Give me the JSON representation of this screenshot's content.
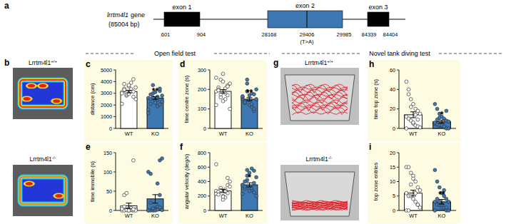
{
  "figure": {
    "panel_labels": [
      "a",
      "b",
      "g"
    ],
    "sections": [
      "Open field test",
      "Novel tank diving test"
    ],
    "gene": {
      "name": "lrrtm4l1",
      "suffix": "gene",
      "length_label": "(85004 bp)",
      "exons": [
        {
          "label": "exon 1",
          "start": 601,
          "end": 904,
          "color": "#000000"
        },
        {
          "label": "exon 2",
          "start": 28168,
          "end": 29985,
          "color": "#3e78b2"
        },
        {
          "label": "exon 3",
          "start": 84339,
          "end": 84404,
          "color": "#000000"
        }
      ],
      "mutation": {
        "position": 29406,
        "label": "(T>A)"
      }
    },
    "genotypes": [
      {
        "base": "Lrrtm4l1",
        "genotype": "+/+"
      },
      {
        "base": "Lrrtm4l1",
        "genotype": "-/-"
      }
    ]
  },
  "chart_data": [
    {
      "type": "bar",
      "panel": "c",
      "y_label": "distance (cm)",
      "categories": [
        "WT",
        "KO"
      ],
      "values": [
        3150,
        2600
      ],
      "errors": [
        110,
        120
      ],
      "colors": [
        "#ffffff",
        "#3e78b2"
      ],
      "points": [
        [
          3100,
          3400,
          2800,
          3600,
          3900,
          4200,
          2500,
          3000,
          3300,
          2900,
          3700,
          3200,
          2700,
          3500,
          2100,
          3800,
          3050,
          2950,
          3350,
          3150
        ],
        [
          2600,
          2100,
          3000,
          2400,
          1900,
          3200,
          2800,
          1300,
          2500,
          3700,
          2200,
          2700,
          3400,
          2300,
          1600,
          2900,
          2650,
          3100,
          2450,
          2050
        ]
      ],
      "significance": [
        null,
        "**"
      ],
      "ylim": [
        0,
        5000
      ],
      "yticks": [
        0,
        1000,
        2000,
        3000,
        4000,
        5000
      ],
      "grid": false
    },
    {
      "type": "bar",
      "panel": "d",
      "y_label": "time centre zone (s)",
      "categories": [
        "WT",
        "KO"
      ],
      "values": [
        190,
        150
      ],
      "errors": [
        9,
        8
      ],
      "colors": [
        "#ffffff",
        "#3e78b2"
      ],
      "points": [
        [
          190,
          210,
          250,
          280,
          150,
          170,
          230,
          120,
          200,
          160,
          240,
          180,
          220,
          100,
          260,
          195,
          175,
          140,
          205,
          215
        ],
        [
          150,
          130,
          190,
          170,
          110,
          90,
          200,
          160,
          140,
          230,
          120,
          180,
          100,
          150,
          165,
          135,
          250,
          145,
          125,
          175
        ]
      ],
      "significance": [
        null,
        "**"
      ],
      "ylim": [
        0,
        300
      ],
      "yticks": [
        0,
        100,
        200,
        300
      ],
      "grid": false
    },
    {
      "type": "bar",
      "panel": "e",
      "y_label": "time immobile (s)",
      "categories": [
        "WT",
        "KO"
      ],
      "values": [
        12,
        30
      ],
      "errors": [
        7,
        11
      ],
      "colors": [
        "#ffffff",
        "#3e78b2"
      ],
      "points": [
        [
          0,
          0,
          2,
          5,
          1,
          0,
          3,
          8,
          40,
          45,
          0,
          2,
          130,
          0,
          4,
          10,
          1,
          0,
          6,
          3
        ],
        [
          0,
          0,
          2,
          5,
          70,
          130,
          135,
          100,
          95,
          0,
          3,
          10,
          40,
          1,
          0,
          20,
          5,
          0,
          2,
          8
        ]
      ],
      "significance": [
        null,
        null
      ],
      "ylim": [
        0,
        150
      ],
      "yticks": [
        0,
        50,
        100,
        150
      ],
      "grid": false
    },
    {
      "type": "bar",
      "panel": "f",
      "y_label": "angular velocity (deg/s)",
      "categories": [
        "WT",
        "KO"
      ],
      "values": [
        270,
        355
      ],
      "errors": [
        22,
        28
      ],
      "colors": [
        "#ffffff",
        "#3e78b2"
      ],
      "points": [
        [
          270,
          250,
          300,
          200,
          180,
          350,
          400,
          230,
          260,
          310,
          150,
          290,
          240,
          330,
          640,
          220,
          280,
          190,
          260,
          450
        ],
        [
          355,
          300,
          420,
          520,
          580,
          250,
          200,
          350,
          400,
          560,
          300,
          280,
          380,
          460,
          230,
          330,
          480,
          270,
          310,
          550
        ]
      ],
      "significance": [
        null,
        "*"
      ],
      "ylim": [
        0,
        800
      ],
      "yticks": [
        0,
        200,
        400,
        600,
        800
      ],
      "grid": false
    },
    {
      "type": "bar",
      "panel": "h",
      "y_label": "time top zone (s)",
      "categories": [
        "WT",
        "KO"
      ],
      "values": [
        14,
        7
      ],
      "errors": [
        3,
        1.5
      ],
      "colors": [
        "#ffffff",
        "#3e78b2"
      ],
      "points": [
        [
          48,
          40,
          30,
          25,
          20,
          18,
          15,
          12,
          10,
          8,
          5,
          3,
          2,
          1,
          0,
          35,
          22,
          6,
          14,
          9
        ],
        [
          25,
          20,
          15,
          12,
          10,
          8,
          7,
          5,
          4,
          3,
          2,
          1,
          0,
          0,
          6,
          9,
          11,
          3,
          2,
          18
        ]
      ],
      "significance": [
        null,
        "*"
      ],
      "ylim": [
        0,
        60
      ],
      "yticks": [
        0,
        20,
        40,
        60
      ],
      "grid": false
    },
    {
      "type": "bar",
      "panel": "i",
      "y_label": "top zone entries",
      "categories": [
        "WT",
        "KO"
      ],
      "values": [
        6,
        3
      ],
      "errors": [
        1,
        0.8
      ],
      "colors": [
        "#ffffff",
        "#3e78b2"
      ],
      "points": [
        [
          15,
          15,
          13,
          12,
          10,
          8,
          7,
          6,
          5,
          5,
          4,
          3,
          2,
          1,
          0,
          0,
          9,
          11,
          6,
          2
        ],
        [
          14,
          10,
          8,
          6,
          5,
          4,
          3,
          3,
          2,
          2,
          1,
          1,
          0,
          0,
          0,
          4,
          3,
          2,
          7,
          1
        ]
      ],
      "significance": [
        null,
        "**"
      ],
      "ylim": [
        0,
        20
      ],
      "yticks": [
        0,
        5,
        10,
        15,
        20
      ],
      "grid": false
    }
  ]
}
